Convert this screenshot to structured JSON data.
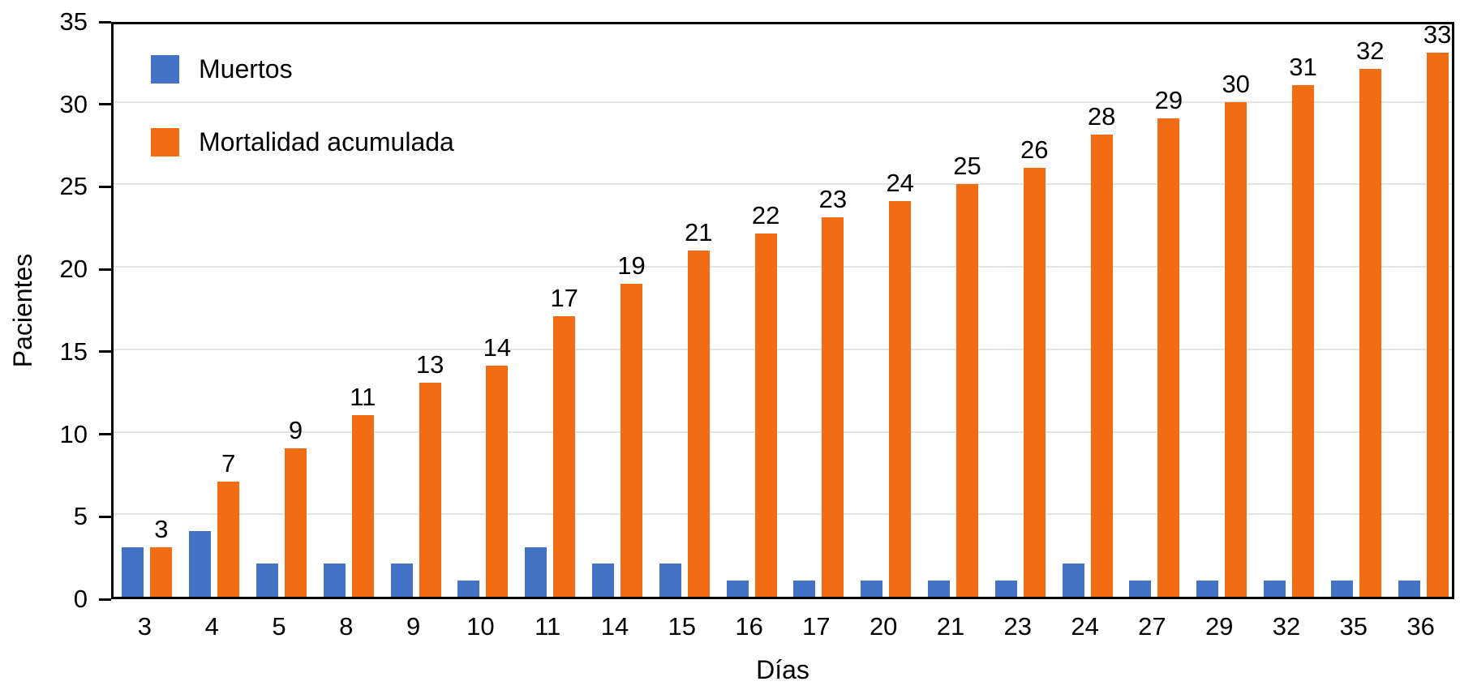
{
  "chart_data": {
    "type": "bar",
    "title": "",
    "xlabel": "Días",
    "ylabel": "Pacientes",
    "categories": [
      "3",
      "4",
      "5",
      "8",
      "9",
      "10",
      "11",
      "14",
      "15",
      "16",
      "17",
      "20",
      "21",
      "23",
      "24",
      "27",
      "29",
      "32",
      "35",
      "36"
    ],
    "series": [
      {
        "name": "Muertos",
        "color": "#4472c4",
        "values": [
          3,
          4,
          2,
          2,
          2,
          1,
          3,
          2,
          2,
          1,
          1,
          1,
          1,
          1,
          2,
          1,
          1,
          1,
          1,
          1
        ],
        "data_labels": false
      },
      {
        "name": "Mortalidad acumulada",
        "color": "#f26c13",
        "values": [
          3,
          7,
          9,
          11,
          13,
          14,
          17,
          19,
          21,
          22,
          23,
          24,
          25,
          26,
          28,
          29,
          30,
          31,
          32,
          33
        ],
        "data_labels": true
      }
    ],
    "ylim": [
      0,
      35
    ],
    "yticks": [
      0,
      5,
      10,
      15,
      20,
      25,
      30,
      35
    ],
    "grid": true,
    "grid_color": "#e4e4e4",
    "axis_color": "#000000",
    "legend_position": "top-left-inside"
  }
}
